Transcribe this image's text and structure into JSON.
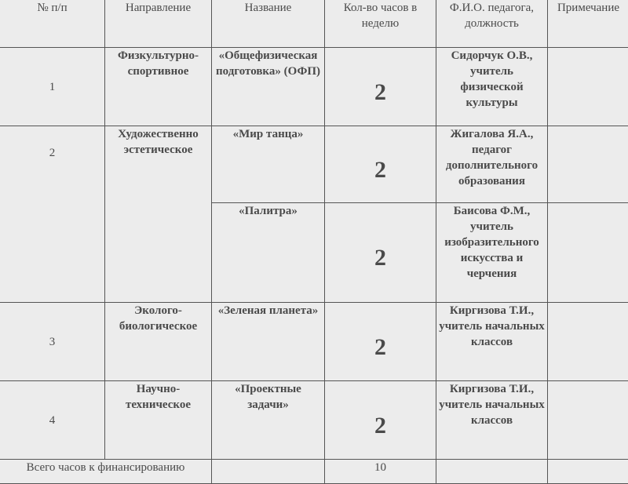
{
  "headers": [
    "№ п/п",
    "Направление",
    "Название",
    "Кол-во часов в неделю",
    "Ф.И.О. педагога, должность",
    "Примечание"
  ],
  "rows": [
    {
      "num": "1",
      "direction": "Физкультурно-спортивное",
      "name": "«Общефизическая подготовка» (ОФП)",
      "hours": "2",
      "teacher": "Сидорчук О.В., учитель физической культуры",
      "note": ""
    },
    {
      "num": "2",
      "direction": "Художественно эстетическое",
      "name": "«Мир танца»",
      "hours": "2",
      "teacher": "Жигалова Я.А., педагог дополнительного образования",
      "note": ""
    },
    {
      "name": "«Палитра»",
      "hours": "2",
      "teacher": "Баисова Ф.М., учитель изобразительного искусства и черчения",
      "note": ""
    },
    {
      "num": "3",
      "direction": "Эколого-биологическое",
      "name": "«Зеленая планета»",
      "hours": "2",
      "teacher": "Киргизова Т.И., учитель начальных классов",
      "note": ""
    },
    {
      "num": "4",
      "direction": "Научно-техническое",
      "name": "«Проектные задачи»",
      "hours": "2",
      "teacher": "Киргизова Т.И., учитель начальных классов",
      "note": ""
    }
  ],
  "total": {
    "label": "Всего часов к финансированию",
    "hours": "10"
  }
}
